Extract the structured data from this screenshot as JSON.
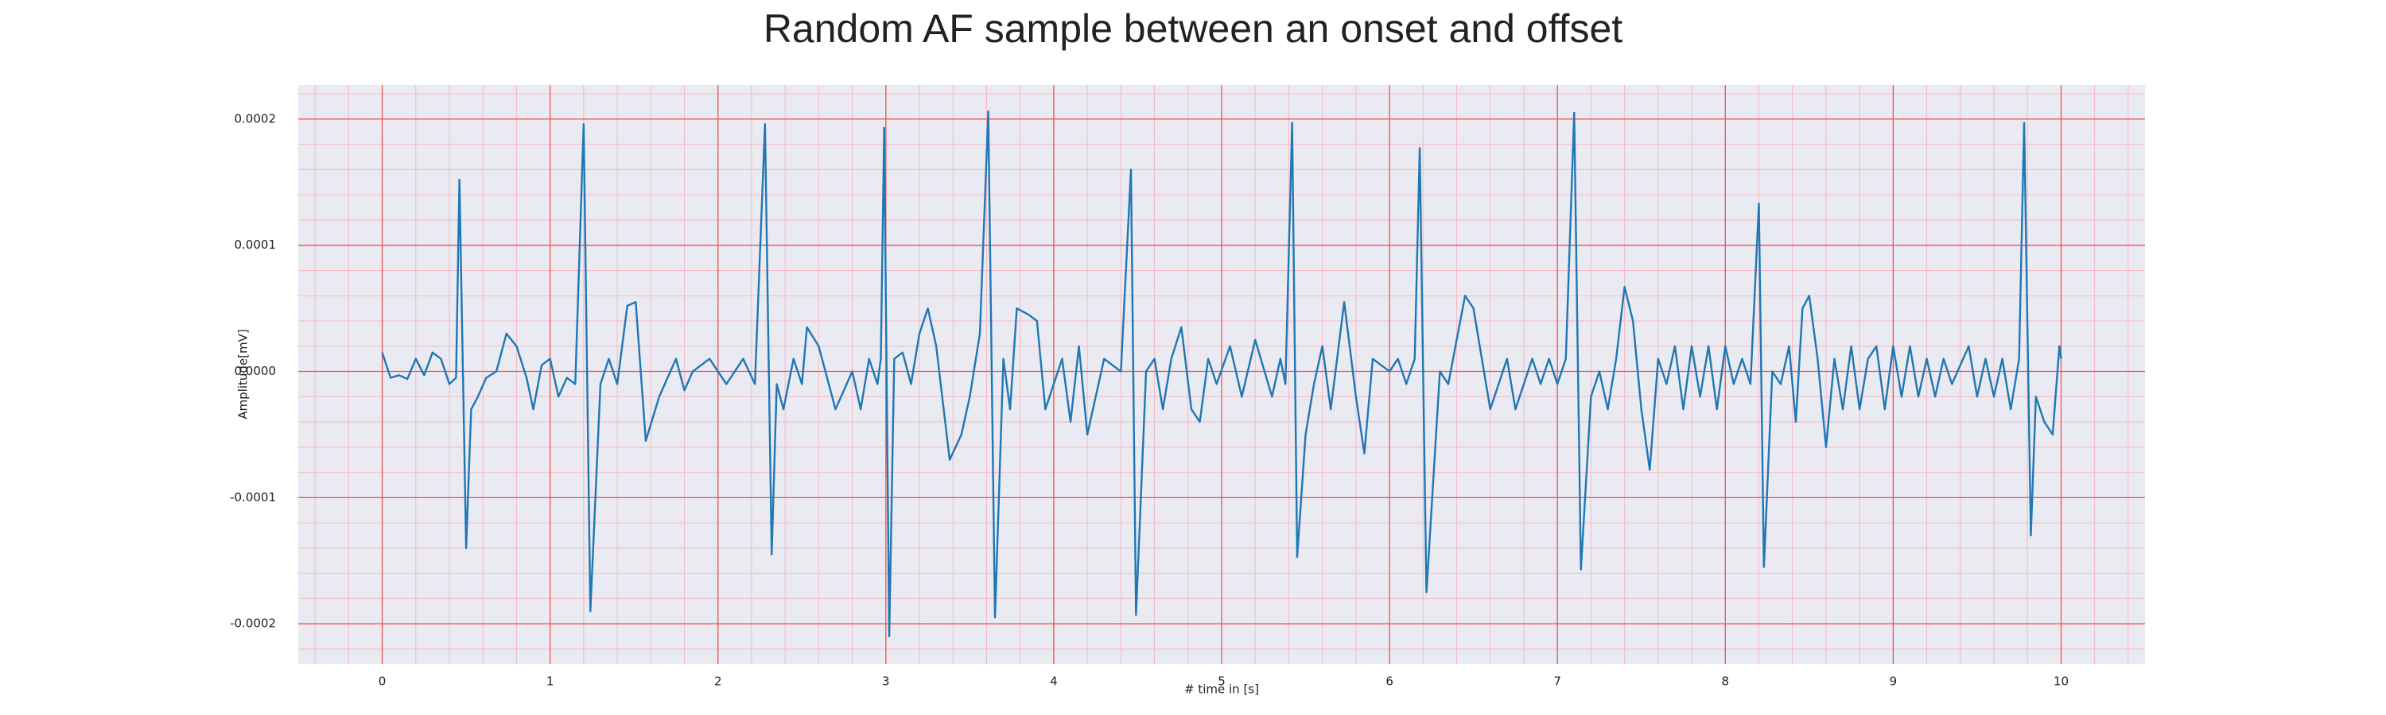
{
  "chart_data": {
    "type": "line",
    "title": "Random AF sample between an onset and offset",
    "xlabel": "# time in [s]",
    "ylabel": "Amplitude[mV]",
    "color": "#1f77b4",
    "grid": true,
    "xlim": [
      -0.5,
      10.5
    ],
    "ylim": [
      -0.000232,
      0.000227
    ],
    "xticks": [
      0,
      1,
      2,
      3,
      4,
      5,
      6,
      7,
      8,
      9,
      10
    ],
    "yticks": [
      -0.0002,
      -0.0001,
      {
        "value": 0,
        "label": "0.0000"
      },
      0.0001,
      0.0002
    ],
    "xminorticks": [
      -0.4,
      -0.2,
      0.2,
      0.4,
      0.6,
      0.8,
      1.2,
      1.4,
      1.6,
      1.8,
      2.2,
      2.4,
      2.6,
      2.8,
      3.2,
      3.4,
      3.6,
      3.8,
      4.2,
      4.4,
      4.6,
      4.8,
      5.2,
      5.4,
      5.6,
      5.8,
      6.2,
      6.4,
      6.6,
      6.8,
      7.2,
      7.4,
      7.6,
      7.8,
      8.2,
      8.4,
      8.6,
      8.8,
      9.2,
      9.4,
      9.6,
      9.8,
      10.2,
      10.4
    ],
    "yminorticks": [
      -0.00022,
      -0.00018,
      -0.00016,
      -0.00014,
      -0.00012,
      -8e-05,
      -6e-05,
      -4e-05,
      -2e-05,
      2e-05,
      4e-05,
      6e-05,
      8e-05,
      0.00012,
      0.00014,
      0.00016,
      0.00018,
      0.00022
    ],
    "x": [
      0,
      0.05,
      0.1,
      0.15,
      0.2,
      0.25,
      0.3,
      0.35,
      0.4,
      0.44,
      0.46,
      0.5,
      0.53,
      0.57,
      0.62,
      0.68,
      0.74,
      0.8,
      0.86,
      0.9,
      0.95,
      1.0,
      1.05,
      1.1,
      1.15,
      1.2,
      1.24,
      1.3,
      1.35,
      1.4,
      1.46,
      1.51,
      1.57,
      1.65,
      1.75,
      1.8,
      1.85,
      1.95,
      2.05,
      2.15,
      2.22,
      2.28,
      2.32,
      2.35,
      2.39,
      2.45,
      2.5,
      2.53,
      2.6,
      2.7,
      2.8,
      2.85,
      2.9,
      2.95,
      2.97,
      2.99,
      3.02,
      3.05,
      3.1,
      3.15,
      3.2,
      3.25,
      3.3,
      3.38,
      3.45,
      3.5,
      3.56,
      3.61,
      3.65,
      3.7,
      3.74,
      3.78,
      3.85,
      3.9,
      3.95,
      4.05,
      4.1,
      4.15,
      4.2,
      4.3,
      4.4,
      4.46,
      4.49,
      4.55,
      4.6,
      4.65,
      4.7,
      4.76,
      4.82,
      4.87,
      4.92,
      4.97,
      5.05,
      5.12,
      5.2,
      5.3,
      5.35,
      5.38,
      5.42,
      5.45,
      5.5,
      5.55,
      5.6,
      5.65,
      5.73,
      5.8,
      5.85,
      5.9,
      6.0,
      6.05,
      6.1,
      6.15,
      6.18,
      6.22,
      6.3,
      6.35,
      6.45,
      6.5,
      6.6,
      6.7,
      6.75,
      6.85,
      6.9,
      6.95,
      7.0,
      7.05,
      7.1,
      7.14,
      7.2,
      7.25,
      7.3,
      7.35,
      7.4,
      7.45,
      7.5,
      7.55,
      7.6,
      7.65,
      7.7,
      7.75,
      7.8,
      7.85,
      7.9,
      7.95,
      8.0,
      8.05,
      8.1,
      8.15,
      8.2,
      8.23,
      8.28,
      8.33,
      8.38,
      8.42,
      8.46,
      8.5,
      8.55,
      8.6,
      8.65,
      8.7,
      8.75,
      8.8,
      8.85,
      8.9,
      8.95,
      9.0,
      9.05,
      9.1,
      9.15,
      9.2,
      9.25,
      9.3,
      9.35,
      9.45,
      9.5,
      9.55,
      9.6,
      9.65,
      9.7,
      9.75,
      9.78,
      9.82,
      9.85,
      9.9,
      9.95,
      9.99,
      10.0
    ],
    "values": [
      1.5e-05,
      -5e-06,
      -3e-06,
      -6e-06,
      1e-05,
      -3e-06,
      1.5e-05,
      1e-05,
      -1e-05,
      -5e-06,
      0.000152,
      -0.00014,
      -3e-05,
      -2e-05,
      -5e-06,
      0,
      3e-05,
      2e-05,
      -5e-06,
      -3e-05,
      5e-06,
      1e-05,
      -2e-05,
      -5e-06,
      -1e-05,
      0.000196,
      -0.00019,
      -1e-05,
      1e-05,
      -1e-05,
      5.2e-05,
      5.5e-05,
      -5.5e-05,
      -2e-05,
      1e-05,
      -1.5e-05,
      0,
      1e-05,
      -1e-05,
      1e-05,
      -1e-05,
      0.000196,
      -0.000145,
      -1e-05,
      -3e-05,
      1e-05,
      -1e-05,
      3.5e-05,
      2e-05,
      -3e-05,
      0,
      -3e-05,
      1e-05,
      -1e-05,
      1e-05,
      0.000193,
      -0.00021,
      1e-05,
      1.5e-05,
      -1e-05,
      3e-05,
      5e-05,
      2e-05,
      -7e-05,
      -5e-05,
      -2e-05,
      3e-05,
      0.000206,
      -0.000195,
      1e-05,
      -3e-05,
      5e-05,
      4.5e-05,
      4e-05,
      -3e-05,
      1e-05,
      -4e-05,
      2e-05,
      -5e-05,
      1e-05,
      0,
      0.00016,
      -0.000193,
      0,
      1e-05,
      -3e-05,
      1e-05,
      3.5e-05,
      -3e-05,
      -4e-05,
      1e-05,
      -1e-05,
      2e-05,
      -2e-05,
      2.5e-05,
      -2e-05,
      1e-05,
      -1e-05,
      0.000197,
      -0.000147,
      -5e-05,
      -1e-05,
      2e-05,
      -3e-05,
      5.5e-05,
      -2e-05,
      -6.5e-05,
      1e-05,
      0,
      1e-05,
      -1e-05,
      1e-05,
      0.000177,
      -0.000175,
      0,
      -1e-05,
      6e-05,
      5e-05,
      -3e-05,
      1e-05,
      -3e-05,
      1e-05,
      -1e-05,
      1e-05,
      -1e-05,
      1e-05,
      0.000205,
      -0.000157,
      -2e-05,
      0,
      -3e-05,
      1e-05,
      6.7e-05,
      4e-05,
      -3e-05,
      -7.8e-05,
      1e-05,
      -1e-05,
      2e-05,
      -3e-05,
      2e-05,
      -2e-05,
      2e-05,
      -3e-05,
      2e-05,
      -1e-05,
      1e-05,
      -1e-05,
      0.000133,
      -0.000155,
      0,
      -1e-05,
      2e-05,
      -4e-05,
      5e-05,
      6e-05,
      1e-05,
      -6e-05,
      1e-05,
      -3e-05,
      2e-05,
      -3e-05,
      1e-05,
      2e-05,
      -3e-05,
      2e-05,
      -2e-05,
      2e-05,
      -2e-05,
      1e-05,
      -2e-05,
      1e-05,
      -1e-05,
      2e-05,
      -2e-05,
      1e-05,
      -2e-05,
      1e-05,
      -3e-05,
      1e-05,
      0.000197,
      -0.00013,
      -2e-05,
      -4e-05,
      -5e-05,
      2e-05,
      1e-05
    ]
  }
}
